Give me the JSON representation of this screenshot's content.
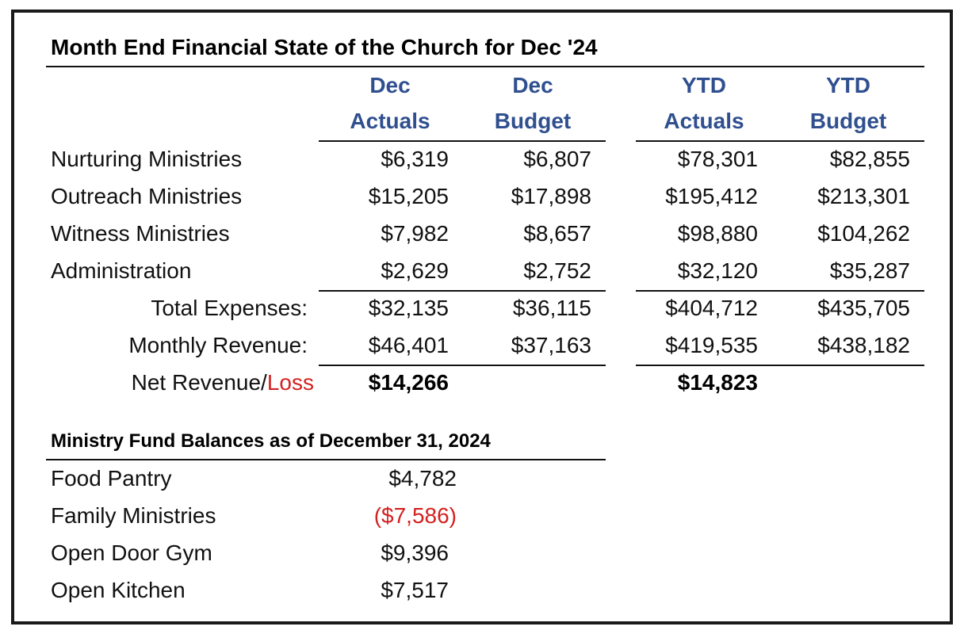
{
  "title": "Month End Financial State of the Church for Dec '24",
  "columns": [
    {
      "line1": "Dec",
      "line2": "Actuals"
    },
    {
      "line1": "Dec",
      "line2": "Budget"
    },
    {
      "line1": "YTD",
      "line2": "Actuals"
    },
    {
      "line1": "YTD",
      "line2": "Budget"
    }
  ],
  "rows": [
    {
      "label": "Nurturing Ministries",
      "values": [
        "$6,319",
        "$6,807",
        "$78,301",
        "$82,855"
      ]
    },
    {
      "label": "Outreach Ministries",
      "values": [
        "$15,205",
        "$17,898",
        "$195,412",
        "$213,301"
      ]
    },
    {
      "label": "Witness Ministries",
      "values": [
        "$7,982",
        "$8,657",
        "$98,880",
        "$104,262"
      ]
    },
    {
      "label": "Administration",
      "values": [
        "$2,629",
        "$2,752",
        "$32,120",
        "$35,287"
      ]
    }
  ],
  "totals": [
    {
      "label": "Total Expenses:",
      "values": [
        "$32,135",
        "$36,115",
        "$404,712",
        "$435,705"
      ]
    },
    {
      "label": "Monthly Revenue:",
      "values": [
        "$46,401",
        "$37,163",
        "$419,535",
        "$438,182"
      ]
    }
  ],
  "net": {
    "label_a": "Net Revenue/",
    "label_b": "Loss",
    "dec_actual": "$14,266",
    "ytd_actual": "$14,823"
  },
  "funds": {
    "title": "Ministry Fund Balances as of December 31, 2024",
    "items": [
      {
        "label": "Food Pantry",
        "value": "$4,782",
        "negative": false
      },
      {
        "label": "Family Ministries",
        "value": "($7,586)",
        "negative": true
      },
      {
        "label": "Open Door Gym",
        "value": "$9,396",
        "negative": false
      },
      {
        "label": "Open Kitchen",
        "value": "$7,517",
        "negative": false
      }
    ]
  },
  "colors": {
    "header_blue": "#2f4f8f",
    "loss_red": "#d42020"
  }
}
